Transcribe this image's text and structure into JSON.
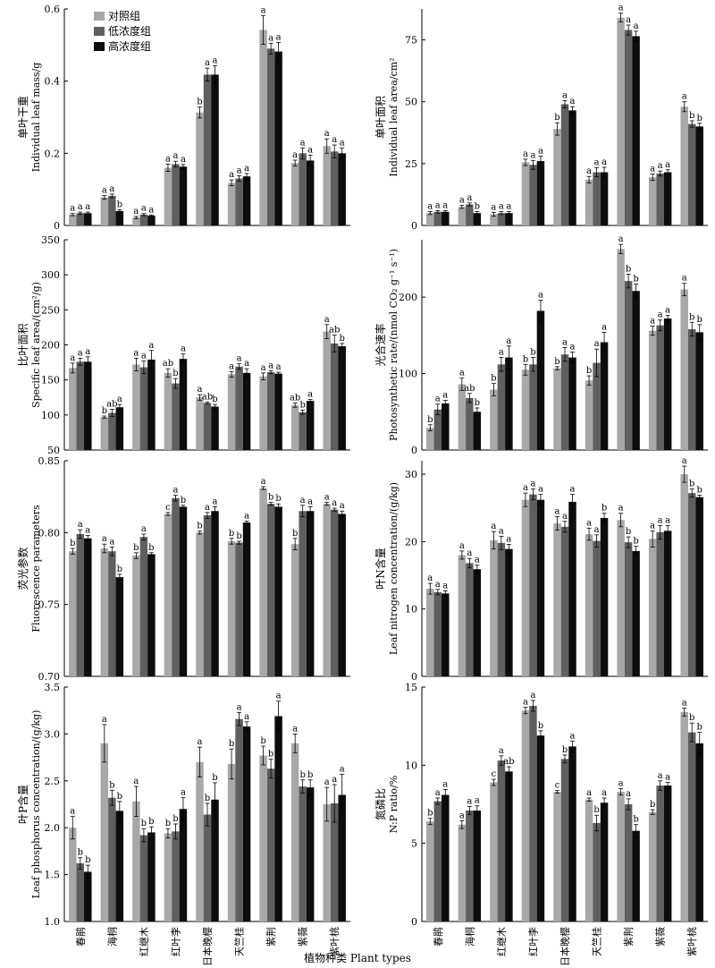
{
  "colors": {
    "control": "#a8a8a8",
    "low": "#5f5f5f",
    "high": "#0d0d0d",
    "axis": "#000000"
  },
  "legend": {
    "placement": "top-left of first panel",
    "items": [
      "对照组",
      "低浓度组",
      "高浓度组"
    ]
  },
  "categories": [
    "春鹃",
    "海桐",
    "红继木",
    "红叶李",
    "日本晚樱",
    "天竺桂",
    "紫荆",
    "紫薇",
    "紫叶桃"
  ],
  "x_title": "植物种类 Plant types",
  "chart_data": [
    {
      "type": "bar",
      "id": "leaf-mass",
      "ylabel_cn": "单叶干重",
      "ylabel_en": "Individual leaf mass/g",
      "ylim": [
        0,
        0.6
      ],
      "yticks": [
        "0",
        "0.2",
        "0.4",
        "0.6"
      ],
      "ytick_values": [
        0,
        0.2,
        0.4,
        0.6
      ],
      "series": [
        {
          "name": "对照组",
          "values": [
            0.03,
            0.078,
            0.022,
            0.16,
            0.313,
            0.118,
            0.542,
            0.173,
            0.22
          ],
          "errors": [
            0.003,
            0.005,
            0.003,
            0.01,
            0.015,
            0.008,
            0.04,
            0.008,
            0.02
          ],
          "labels": [
            "a",
            "a",
            "a",
            "a",
            "b",
            "a",
            "a",
            "a",
            "a"
          ]
        },
        {
          "name": "低浓度组",
          "values": [
            0.034,
            0.082,
            0.03,
            0.17,
            0.418,
            0.13,
            0.49,
            0.2,
            0.205
          ],
          "errors": [
            0.003,
            0.005,
            0.003,
            0.008,
            0.018,
            0.008,
            0.015,
            0.015,
            0.018
          ],
          "labels": [
            "a",
            "a",
            "a",
            "a",
            "a",
            "a",
            "a",
            "a",
            "a"
          ]
        },
        {
          "name": "高浓度组",
          "values": [
            0.034,
            0.04,
            0.027,
            0.163,
            0.418,
            0.136,
            0.482,
            0.18,
            0.2
          ],
          "errors": [
            0.003,
            0.004,
            0.002,
            0.006,
            0.025,
            0.008,
            0.025,
            0.015,
            0.015
          ],
          "labels": [
            "a",
            "b",
            "a",
            "a",
            "a",
            "a",
            "a",
            "a",
            "a"
          ]
        }
      ]
    },
    {
      "type": "bar",
      "id": "leaf-area",
      "ylabel_cn": "单叶面积",
      "ylabel_en": "Individual leaf area/cm²",
      "ylim": [
        0,
        87.5
      ],
      "yticks": [
        "0",
        "25",
        "50",
        "75"
      ],
      "ytick_values": [
        0,
        25,
        50,
        75
      ],
      "series": [
        {
          "name": "对照组",
          "values": [
            5,
            7.5,
            4.5,
            25.5,
            39,
            18.5,
            84,
            19.5,
            48
          ],
          "errors": [
            0.6,
            0.6,
            0.8,
            1.3,
            2.5,
            1.3,
            1.8,
            1.3,
            2.0
          ],
          "labels": [
            "a",
            "a",
            "a",
            "a",
            "b",
            "a",
            "a",
            "a",
            "a"
          ]
        },
        {
          "name": "低浓度组",
          "values": [
            5.5,
            8.5,
            5,
            24.5,
            49,
            21.5,
            79,
            21,
            41
          ],
          "errors": [
            0.5,
            0.6,
            0.6,
            1.8,
            1.5,
            1.8,
            2.0,
            1.0,
            1.3
          ],
          "labels": [
            "a",
            "a",
            "a",
            "a",
            "a",
            "a",
            "a",
            "a",
            "b"
          ]
        },
        {
          "name": "高浓度组",
          "values": [
            5.5,
            5,
            5,
            26,
            46.5,
            21.5,
            76.5,
            21.5,
            40
          ],
          "errors": [
            0.5,
            0.6,
            0.6,
            2.0,
            1.5,
            2.0,
            2.0,
            1.0,
            1.3
          ],
          "labels": [
            "a",
            "b",
            "a",
            "a",
            "a",
            "a",
            "a",
            "a",
            "b"
          ]
        }
      ]
    },
    {
      "type": "bar",
      "id": "sla",
      "ylabel_cn": "比叶面积",
      "ylabel_en": "Specific leaf area/(cm²/g)",
      "ylim": [
        50,
        350
      ],
      "yticks": [
        "50",
        "100",
        "150",
        "200",
        "250",
        "300",
        "350"
      ],
      "ytick_values": [
        50,
        100,
        150,
        200,
        250,
        300,
        350
      ],
      "series": [
        {
          "name": "对照组",
          "values": [
            167,
            97,
            172,
            160,
            125,
            158,
            155,
            114,
            219
          ],
          "errors": [
            7,
            1.5,
            9,
            6,
            4,
            4,
            5,
            3,
            10
          ],
          "labels": [
            "a",
            "b",
            "a",
            "ab",
            "a",
            "a",
            "a",
            "ab",
            "a"
          ]
        },
        {
          "name": "低浓度组",
          "values": [
            176,
            103,
            168,
            145,
            117,
            169,
            161,
            104,
            202
          ],
          "errors": [
            5,
            5,
            9,
            7,
            1.5,
            4,
            2,
            3,
            12
          ],
          "labels": [
            "a",
            "ab",
            "a",
            "b",
            "ab",
            "a",
            "a",
            "b",
            "ab"
          ]
        },
        {
          "name": "高浓度组",
          "values": [
            176,
            111,
            179,
            180,
            112,
            160,
            159,
            120,
            198
          ],
          "errors": [
            7,
            4,
            13,
            7,
            3,
            6,
            2,
            2,
            4
          ],
          "labels": [
            "a",
            "a",
            "a",
            "a",
            "b",
            "a",
            "a",
            "a",
            "b"
          ]
        }
      ]
    },
    {
      "type": "bar",
      "id": "photosynthesis",
      "ylabel_cn": "光合速率",
      "ylabel_en": "Photosynthetic rate/(nmol CO₂ g⁻¹ s⁻¹)",
      "ylim": [
        0,
        275
      ],
      "yticks": [
        "0",
        "100",
        "200"
      ],
      "ytick_values": [
        0,
        100,
        200
      ],
      "series": [
        {
          "name": "对照组",
          "values": [
            29,
            86,
            79,
            105,
            107,
            91,
            263,
            156,
            210
          ],
          "errors": [
            4,
            8,
            8,
            7,
            2,
            6,
            6,
            6,
            8
          ],
          "labels": [
            "b",
            "a",
            "b",
            "b",
            "b",
            "b",
            "a",
            "a",
            "a"
          ]
        },
        {
          "name": "低浓度组",
          "values": [
            53,
            68,
            112,
            112,
            125,
            114,
            221,
            163,
            158
          ],
          "errors": [
            7,
            6,
            9,
            9,
            9,
            18,
            9,
            7,
            9
          ],
          "labels": [
            "a",
            "ab",
            "a",
            "b",
            "a",
            "a",
            "b",
            "a",
            "b"
          ]
        },
        {
          "name": "高浓度组",
          "values": [
            61,
            50,
            121,
            182,
            121,
            141,
            208,
            172,
            154
          ],
          "errors": [
            4,
            5,
            15,
            14,
            7,
            13,
            9,
            4,
            10
          ],
          "labels": [
            "a",
            "b",
            "a",
            "a",
            "a",
            "a",
            "b",
            "a",
            "b"
          ]
        }
      ]
    },
    {
      "type": "bar",
      "id": "fluorescence",
      "ylabel_cn": "荧光参数",
      "ylabel_en": "Fluorescence parameters",
      "ylim": [
        0.7,
        0.85
      ],
      "yticks": [
        "0.70",
        "0.75",
        "0.80",
        "0.85"
      ],
      "ytick_values": [
        0.7,
        0.75,
        0.8,
        0.85
      ],
      "series": [
        {
          "name": "对照组",
          "values": [
            0.787,
            0.789,
            0.784,
            0.813,
            0.8,
            0.794,
            0.831,
            0.792,
            0.82
          ],
          "errors": [
            0.002,
            0.003,
            0.002,
            0.001,
            0.001,
            0.002,
            0.001,
            0.004,
            0.001
          ],
          "labels": [
            "b",
            "a",
            "b",
            "c",
            "b",
            "b",
            "a",
            "b",
            "a"
          ]
        },
        {
          "name": "低浓度组",
          "values": [
            0.799,
            0.787,
            0.797,
            0.824,
            0.812,
            0.793,
            0.82,
            0.815,
            0.816
          ],
          "errors": [
            0.003,
            0.003,
            0.002,
            0.002,
            0.002,
            0.001,
            0.001,
            0.004,
            0.001
          ],
          "labels": [
            "a",
            "a",
            "a",
            "a",
            "a",
            "b",
            "b",
            "a",
            "a"
          ]
        },
        {
          "name": "高浓度组",
          "values": [
            0.796,
            0.769,
            0.785,
            0.818,
            0.815,
            0.807,
            0.818,
            0.815,
            0.813
          ],
          "errors": [
            0.002,
            0.002,
            0.001,
            0.001,
            0.003,
            0.001,
            0.002,
            0.003,
            0.002
          ],
          "labels": [
            "a",
            "b",
            "b",
            "b",
            "a",
            "a",
            "b",
            "a",
            "a"
          ]
        }
      ]
    },
    {
      "type": "bar",
      "id": "leaf-n",
      "ylabel_cn": "叶N含量",
      "ylabel_en": "Leaf nitrogen concentration/(g/kg)",
      "ylim": [
        0,
        32
      ],
      "yticks": [
        "0",
        "10",
        "20",
        "30"
      ],
      "ytick_values": [
        0,
        10,
        20,
        30
      ],
      "series": [
        {
          "name": "对照组",
          "values": [
            13,
            18,
            20.2,
            26.2,
            22.7,
            21.1,
            23.2,
            20.4,
            30
          ],
          "errors": [
            0.8,
            0.6,
            1.3,
            1.0,
            1.0,
            0.9,
            1.0,
            1.2,
            1.2
          ],
          "labels": [
            "a",
            "a",
            "a",
            "a",
            "a",
            "a",
            "a",
            "a",
            "a"
          ]
        },
        {
          "name": "低浓度组",
          "values": [
            12.5,
            16.8,
            19.8,
            27,
            22.2,
            20.1,
            19.9,
            21.4,
            27.2
          ],
          "errors": [
            0.4,
            0.7,
            1.0,
            0.8,
            0.8,
            0.9,
            0.8,
            1.0,
            0.6
          ],
          "labels": [
            "a",
            "a",
            "a",
            "a",
            "a",
            "a",
            "b",
            "a",
            "b"
          ]
        },
        {
          "name": "高浓度组",
          "values": [
            12.3,
            15.9,
            18.9,
            26.2,
            25.9,
            23.5,
            18.6,
            21.6,
            26.6
          ],
          "errors": [
            0.4,
            0.6,
            0.7,
            0.8,
            1.1,
            0.7,
            0.7,
            0.8,
            0.3
          ],
          "labels": [
            "a",
            "a",
            "a",
            "a",
            "a",
            "b",
            "b",
            "a",
            "b"
          ]
        }
      ]
    },
    {
      "type": "bar",
      "id": "leaf-p",
      "ylabel_cn": "叶P含量",
      "ylabel_en": "Leaf phosphorus concentration/(g/kg)",
      "ylim": [
        1.0,
        3.5
      ],
      "yticks": [
        "1.0",
        "1.5",
        "2.0",
        "2.5",
        "3.0",
        "3.5"
      ],
      "ytick_values": [
        1.0,
        1.5,
        2.0,
        2.5,
        3.0,
        3.5
      ],
      "series": [
        {
          "name": "对照组",
          "values": [
            2.0,
            2.9,
            2.28,
            1.94,
            2.7,
            2.68,
            2.77,
            2.9,
            2.25
          ],
          "errors": [
            0.12,
            0.2,
            0.16,
            0.05,
            0.16,
            0.16,
            0.1,
            0.1,
            0.18
          ],
          "labels": [
            "a",
            "a",
            "a",
            "b",
            "a",
            "b",
            "b",
            "a",
            "a"
          ]
        },
        {
          "name": "低浓度组",
          "values": [
            1.62,
            2.32,
            1.92,
            1.96,
            2.14,
            3.16,
            2.63,
            2.44,
            2.26
          ],
          "errors": [
            0.06,
            0.08,
            0.07,
            0.08,
            0.12,
            0.07,
            0.1,
            0.07,
            0.2
          ],
          "labels": [
            "b",
            "b",
            "b",
            "b",
            "b",
            "a",
            "b",
            "b",
            "a"
          ]
        },
        {
          "name": "高浓度组",
          "values": [
            1.53,
            2.18,
            1.95,
            2.2,
            2.3,
            3.08,
            3.19,
            2.43,
            2.35
          ],
          "errors": [
            0.07,
            0.1,
            0.06,
            0.12,
            0.18,
            0.05,
            0.16,
            0.08,
            0.22
          ],
          "labels": [
            "b",
            "b",
            "b",
            "a",
            "b",
            "a",
            "a",
            "b",
            "a"
          ]
        }
      ]
    },
    {
      "type": "bar",
      "id": "np-ratio",
      "ylabel_cn": "氮磷比",
      "ylabel_en": "N:P ratio/%",
      "ylim": [
        0,
        15
      ],
      "yticks": [
        "0",
        "5",
        "10",
        "15"
      ],
      "ytick_values": [
        0,
        5,
        10,
        15
      ],
      "series": [
        {
          "name": "对照组",
          "values": [
            6.4,
            6.2,
            8.9,
            13.5,
            8.3,
            7.8,
            8.3,
            7.0,
            13.4
          ],
          "errors": [
            0.2,
            0.25,
            0.2,
            0.2,
            0.08,
            0.1,
            0.2,
            0.15,
            0.25
          ],
          "labels": [
            "b",
            "a",
            "c",
            "a",
            "c",
            "a",
            "a",
            "b",
            "a"
          ]
        },
        {
          "name": "低浓度组",
          "values": [
            7.7,
            7.1,
            10.3,
            13.8,
            10.4,
            6.3,
            7.5,
            8.7,
            12.1
          ],
          "errors": [
            0.2,
            0.25,
            0.3,
            0.35,
            0.25,
            0.5,
            0.35,
            0.3,
            0.6
          ],
          "labels": [
            "a",
            "a",
            "a",
            "a",
            "b",
            "b",
            "a",
            "a",
            "b"
          ]
        },
        {
          "name": "高浓度组",
          "values": [
            8.1,
            7.1,
            9.6,
            11.9,
            11.2,
            7.6,
            5.8,
            8.7,
            11.4
          ],
          "errors": [
            0.35,
            0.3,
            0.3,
            0.3,
            0.35,
            0.3,
            0.4,
            0.2,
            0.7
          ],
          "labels": [
            "a",
            "a",
            "ab",
            "b",
            "a",
            "a",
            "b",
            "a",
            "b"
          ]
        }
      ]
    }
  ]
}
